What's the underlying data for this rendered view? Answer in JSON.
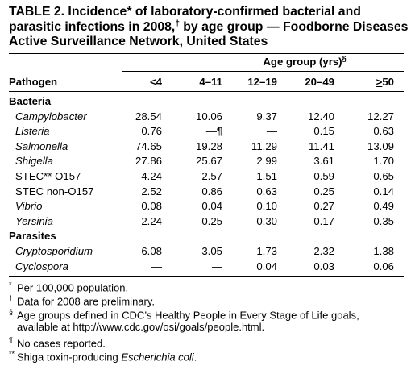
{
  "title": {
    "part1": "TABLE 2. Incidence",
    "mark1": "*",
    "part2": " of laboratory-confirmed bacterial and parasitic infections in 2008,",
    "mark2": "†",
    "part3": " by age group — Foodborne Diseases Active Surveillance Network, United States"
  },
  "group_header": {
    "text": "Age group (yrs)",
    "mark": "§"
  },
  "columns": {
    "pathogen": "Pathogen",
    "ages": [
      "<4",
      "4–11",
      "12–19",
      "20–49",
      "≥50"
    ]
  },
  "sections": [
    {
      "name": "Bacteria",
      "rows": [
        {
          "label": "Campylobacter",
          "italic": true,
          "values": [
            "28.54",
            "10.06",
            "9.37",
            "12.40",
            "12.27"
          ]
        },
        {
          "label": "Listeria",
          "italic": true,
          "values": [
            "0.76",
            "—¶",
            "—",
            "0.15",
            "0.63"
          ]
        },
        {
          "label": "Salmonella",
          "italic": true,
          "values": [
            "74.65",
            "19.28",
            "11.29",
            "11.41",
            "13.09"
          ]
        },
        {
          "label": "Shigella",
          "italic": true,
          "values": [
            "27.86",
            "25.67",
            "2.99",
            "3.61",
            "1.70"
          ]
        },
        {
          "label": "STEC** O157",
          "italic": false,
          "values": [
            "4.24",
            "2.57",
            "1.51",
            "0.59",
            "0.65"
          ]
        },
        {
          "label": "STEC non-O157",
          "italic": false,
          "values": [
            "2.52",
            "0.86",
            "0.63",
            "0.25",
            "0.14"
          ]
        },
        {
          "label": "Vibrio",
          "italic": true,
          "values": [
            "0.08",
            "0.04",
            "0.10",
            "0.27",
            "0.49"
          ]
        },
        {
          "label": "Yersinia",
          "italic": true,
          "values": [
            "2.24",
            "0.25",
            "0.30",
            "0.17",
            "0.35"
          ]
        }
      ]
    },
    {
      "name": "Parasites",
      "rows": [
        {
          "label": "Cryptosporidium",
          "italic": true,
          "values": [
            "6.08",
            "3.05",
            "1.73",
            "2.32",
            "1.38"
          ]
        },
        {
          "label": "Cyclospora",
          "italic": true,
          "values": [
            "—",
            "—",
            "0.04",
            "0.03",
            "0.06"
          ]
        }
      ]
    }
  ],
  "footnotes": [
    {
      "mark": "*",
      "text": "Per 100,000 population."
    },
    {
      "mark": "†",
      "text": "Data for 2008 are preliminary."
    },
    {
      "mark": "§",
      "text": "Age groups defined in CDC’s Healthy People in Every Stage of Life goals,",
      "cont": "available at http://www.cdc.gov/osi/goals/people.html."
    },
    {
      "mark": "¶",
      "text": "No cases reported."
    },
    {
      "mark": "**",
      "text": "Shiga toxin-producing ",
      "italic_tail": "Escherichia coli",
      "tail": "."
    }
  ]
}
